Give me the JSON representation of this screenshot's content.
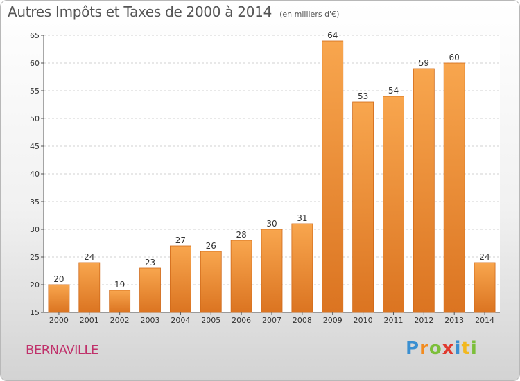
{
  "title": "Autres Impôts et Taxes de 2000 à 2014",
  "subtitle": "(en milliers d'€)",
  "location": "BERNAVILLE",
  "logo": {
    "letters": [
      "P",
      "r",
      "o",
      "x",
      "i",
      "t",
      "i"
    ],
    "colors": [
      "#3a8fd1",
      "#f28b1f",
      "#7cbf3a",
      "#e03a2f",
      "#3a8fd1",
      "#f2b81f",
      "#7cbf3a"
    ]
  },
  "colors": {
    "bar_light": "#f8a64e",
    "bar_dark": "#db7421",
    "bar_edge": "#d06a1a",
    "grid": "#d0d0d0",
    "axis_text": "#333333"
  },
  "chart_data": {
    "type": "bar",
    "categories": [
      "2000",
      "2001",
      "2002",
      "2003",
      "2004",
      "2005",
      "2006",
      "2007",
      "2008",
      "2009",
      "2010",
      "2011",
      "2012",
      "2013",
      "2014"
    ],
    "values": [
      20,
      24,
      19,
      23,
      27,
      26,
      28,
      30,
      31,
      64,
      53,
      54,
      59,
      60,
      24
    ],
    "title": "Autres Impôts et Taxes de 2000 à 2014",
    "ylim": [
      15,
      65
    ],
    "yticks": [
      15,
      20,
      25,
      30,
      35,
      40,
      45,
      50,
      55,
      60,
      65
    ],
    "grid": true,
    "data_labels": true
  }
}
